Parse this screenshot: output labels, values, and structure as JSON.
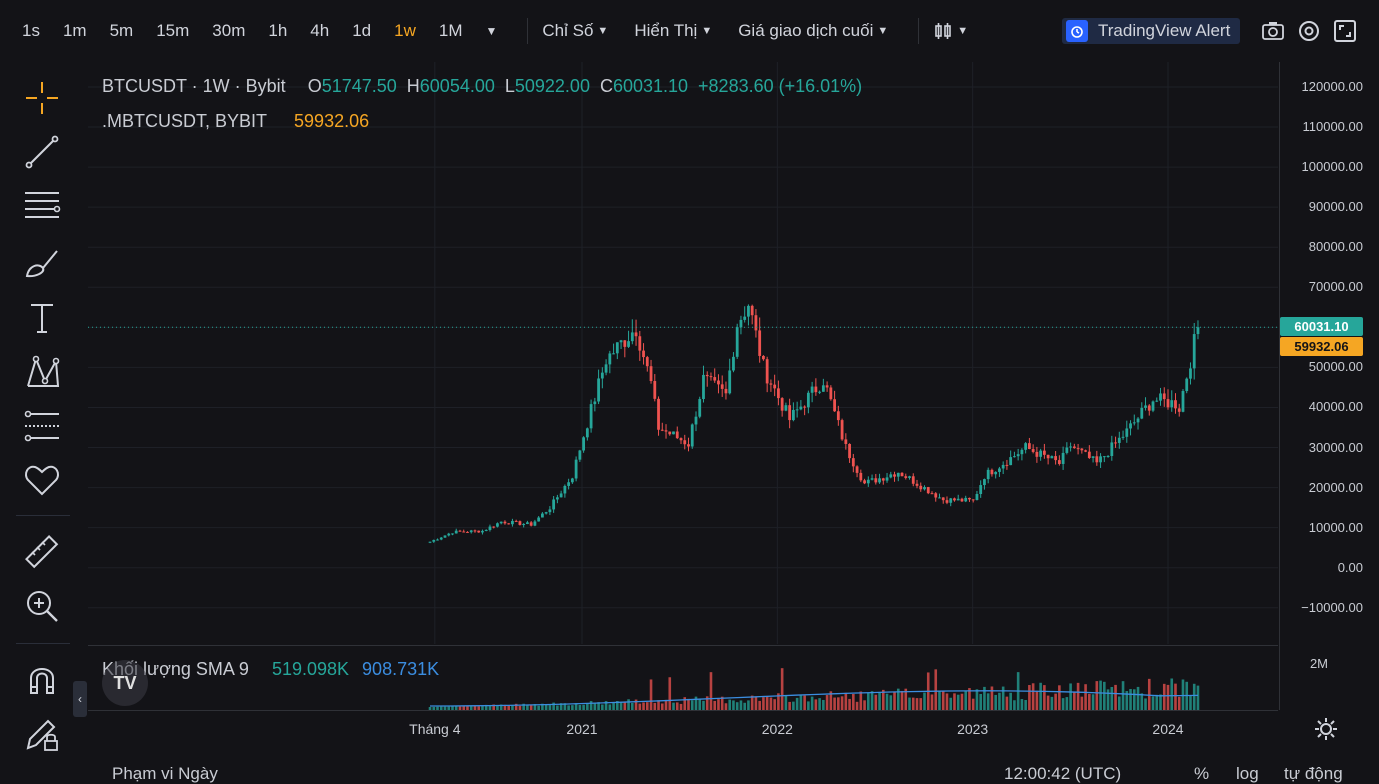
{
  "toolbar": {
    "timeframes": [
      "1s",
      "1m",
      "5m",
      "15m",
      "30m",
      "1h",
      "4h",
      "1d",
      "1w",
      "1M"
    ],
    "active_timeframe": "1w",
    "indicators_label": "Chỉ Số",
    "display_label": "Hiển Thị",
    "price_type_label": "Giá giao dịch cuối",
    "alert_label": "TradingView Alert"
  },
  "legend": {
    "symbol": "BTCUSDT · 1W · Bybit",
    "open_label": "O",
    "open": "51747.50",
    "high_label": "H",
    "high": "60054.00",
    "low_label": "L",
    "low": "50922.00",
    "close_label": "C",
    "close": "60031.10",
    "change": "+8283.60 (+16.01%)",
    "mark_symbol": ".MBTCUSDT, BYBIT",
    "mark_value": "59932.06"
  },
  "volume_legend": {
    "label": "Khối lượng SMA 9",
    "value1": "519.098K",
    "value2": "908.731K",
    "axis_label": "2M"
  },
  "price_axis": {
    "ticks": [
      "120000.00",
      "110000.00",
      "100000.00",
      "90000.00",
      "80000.00",
      "70000.00",
      "60000.00",
      "50000.00",
      "40000.00",
      "30000.00",
      "20000.00",
      "10000.00",
      "0.00",
      "−10000.00"
    ],
    "last_price": "60031.10",
    "mark_price": "59932.06"
  },
  "time_axis": {
    "ticks": [
      "Tháng 4",
      "2021",
      "2022",
      "2023",
      "2024"
    ]
  },
  "bottom_bar": {
    "left": "Phạm vi Ngày",
    "time": "12:00:42 (UTC)",
    "pct": "%",
    "log": "log",
    "auto": "tự động"
  },
  "colors": {
    "up": "#26a69a",
    "down": "#ef5350",
    "accent": "#f5a623",
    "sma": "#3b8de0",
    "last_price_bg": "#26a69a",
    "mark_price_bg": "#f5a623"
  },
  "chart_data": {
    "type": "candlestick",
    "title": "BTCUSDT · 1W · Bybit",
    "ylim": [
      -10000,
      125000
    ],
    "x_ticks": [
      "Tháng 4",
      "2021",
      "2022",
      "2023",
      "2024"
    ],
    "series": [
      {
        "name": "BTCUSDT",
        "close_path": [
          [
            "2020-03-23",
            6500
          ],
          [
            "2020-05-04",
            8900
          ],
          [
            "2020-06-29",
            9200
          ],
          [
            "2020-08-03",
            11500
          ],
          [
            "2020-09-28",
            10800
          ],
          [
            "2020-11-02",
            15000
          ],
          [
            "2020-12-14",
            23000
          ],
          [
            "2021-01-04",
            33000
          ],
          [
            "2021-02-15",
            52000
          ],
          [
            "2021-04-12",
            60000
          ],
          [
            "2021-05-10",
            46000
          ],
          [
            "2021-05-24",
            35000
          ],
          [
            "2021-07-19",
            31000
          ],
          [
            "2021-08-16",
            47000
          ],
          [
            "2021-09-27",
            43000
          ],
          [
            "2021-10-18",
            61000
          ],
          [
            "2021-11-08",
            66000
          ],
          [
            "2021-12-06",
            50000
          ],
          [
            "2022-01-24",
            37000
          ],
          [
            "2022-03-28",
            47000
          ],
          [
            "2022-05-09",
            30000
          ],
          [
            "2022-06-13",
            21000
          ],
          [
            "2022-08-15",
            24000
          ],
          [
            "2022-11-07",
            17000
          ],
          [
            "2023-01-02",
            16700
          ],
          [
            "2023-01-23",
            23000
          ],
          [
            "2023-03-20",
            28000
          ],
          [
            "2023-04-10",
            30000
          ],
          [
            "2023-06-12",
            26000
          ],
          [
            "2023-07-03",
            30500
          ],
          [
            "2023-08-21",
            26000
          ],
          [
            "2023-10-16",
            34000
          ],
          [
            "2023-12-04",
            42000
          ],
          [
            "2024-01-15",
            41000
          ],
          [
            "2024-01-22",
            40000
          ],
          [
            "2024-02-12",
            52000
          ],
          [
            "2024-02-26",
            60031.1
          ]
        ]
      }
    ],
    "volume_sma": {
      "name": "Khối lượng SMA 9",
      "values": [
        "519.098K",
        "908.731K"
      ]
    }
  }
}
